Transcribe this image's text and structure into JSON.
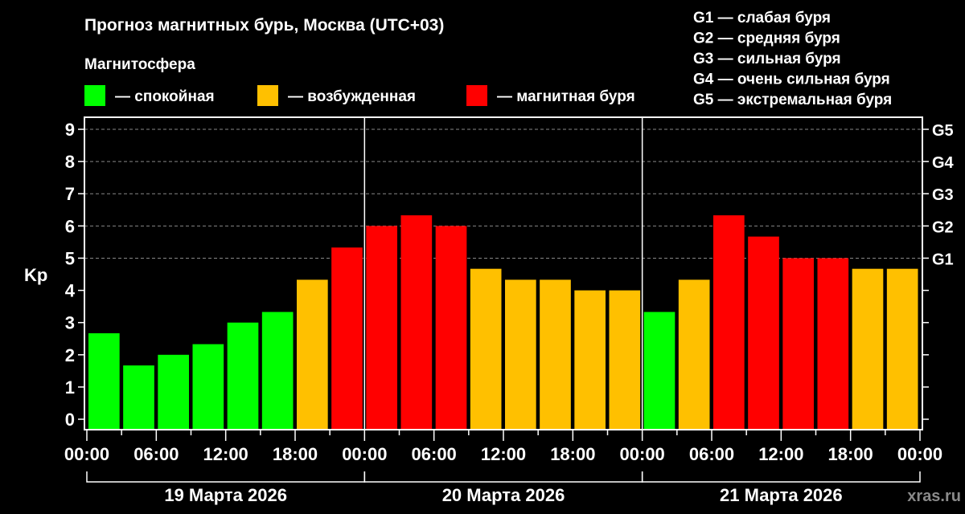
{
  "chart_data": {
    "type": "bar",
    "title": "Прогноз магнитных бурь, Москва (UTC+03)",
    "legend_title": "Магнитосфера",
    "legend": [
      {
        "label": "— спокойная",
        "color": "#00ff00"
      },
      {
        "label": "— возбужденная",
        "color": "#ffc000"
      },
      {
        "label": "— магнитная буря",
        "color": "#ff0000"
      }
    ],
    "g_legend": [
      "G1 — слабая буря",
      "G2 — средняя буря",
      "G3 — сильная буря",
      "G4 — очень сильная буря",
      "G5 — экстремальная буря"
    ],
    "ylabel": "Kp",
    "ylim": [
      0,
      9
    ],
    "yticks": [
      "0",
      "1",
      "2",
      "3",
      "4",
      "5",
      "6",
      "7",
      "8",
      "9"
    ],
    "right_ticks": [
      {
        "kp": 5,
        "label": "G1"
      },
      {
        "kp": 6,
        "label": "G2"
      },
      {
        "kp": 7,
        "label": "G3"
      },
      {
        "kp": 8,
        "label": "G4"
      },
      {
        "kp": 9,
        "label": "G5"
      }
    ],
    "grid": {
      "style": "dashed",
      "from_kp": 5
    },
    "xtick_labels": [
      "00:00",
      "06:00",
      "12:00",
      "18:00",
      "00:00",
      "06:00",
      "12:00",
      "18:00",
      "00:00",
      "06:00",
      "12:00",
      "18:00",
      "00:00"
    ],
    "days": [
      "19 Марта 2026",
      "20 Марта 2026",
      "21 Марта 2026"
    ],
    "interval_hours": 3,
    "values": [
      [
        2.67,
        1.67,
        2.0,
        2.33,
        3.0,
        3.33,
        4.33,
        5.33
      ],
      [
        6.0,
        6.33,
        6.0,
        4.67,
        4.33,
        4.33,
        4.0,
        4.0
      ],
      [
        3.33,
        4.33,
        6.33,
        5.67,
        5.0,
        5.0,
        4.67,
        4.67
      ]
    ],
    "colors": {
      "quiet": "#00ff00",
      "active": "#ffc000",
      "storm": "#ff0000",
      "thresholds": {
        "active_from": 4,
        "storm_from": 5
      }
    }
  },
  "watermark": "xras.ru"
}
